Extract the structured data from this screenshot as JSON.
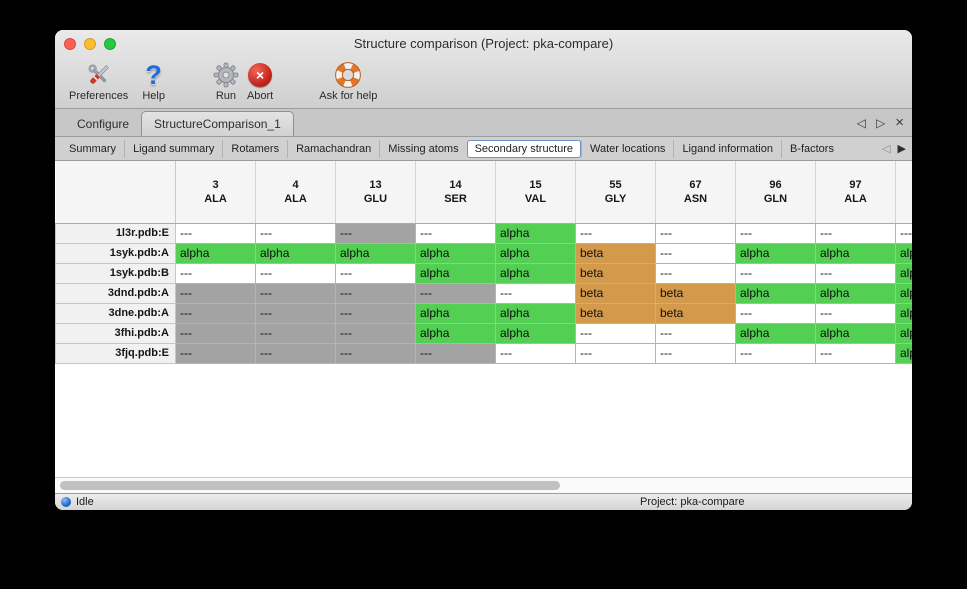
{
  "window": {
    "title": "Structure comparison (Project: pka-compare)"
  },
  "toolbar": {
    "items": [
      {
        "label": "Preferences",
        "icon": "tools-icon"
      },
      {
        "label": "Help",
        "icon": "help-question-icon"
      },
      {
        "label": "Run",
        "icon": "gear-icon"
      },
      {
        "label": "Abort",
        "icon": "abort-icon"
      },
      {
        "label": "Ask for help",
        "icon": "lifebuoy-icon"
      }
    ]
  },
  "main_tabs": {
    "items": [
      {
        "label": "Configure",
        "active": false
      },
      {
        "label": "StructureComparison_1",
        "active": true
      }
    ],
    "controls": {
      "prev": "◁",
      "next": "▷",
      "close": "×"
    }
  },
  "sub_tabs": {
    "items": [
      {
        "label": "Summary",
        "selected": false
      },
      {
        "label": "Ligand summary",
        "selected": false
      },
      {
        "label": "Rotamers",
        "selected": false
      },
      {
        "label": "Ramachandran",
        "selected": false
      },
      {
        "label": "Missing atoms",
        "selected": false
      },
      {
        "label": "Secondary structure",
        "selected": true
      },
      {
        "label": "Water locations",
        "selected": false
      },
      {
        "label": "Ligand information",
        "selected": false
      },
      {
        "label": "B-factors",
        "selected": false
      }
    ],
    "controls": {
      "prev": "◁",
      "next": "▶"
    }
  },
  "table": {
    "columns": [
      {
        "num": "3",
        "res": "ALA"
      },
      {
        "num": "4",
        "res": "ALA"
      },
      {
        "num": "13",
        "res": "GLU"
      },
      {
        "num": "14",
        "res": "SER"
      },
      {
        "num": "15",
        "res": "VAL"
      },
      {
        "num": "55",
        "res": "GLY"
      },
      {
        "num": "67",
        "res": "ASN"
      },
      {
        "num": "96",
        "res": "GLN"
      },
      {
        "num": "97",
        "res": "ALA"
      },
      {
        "num": "",
        "res": ""
      }
    ],
    "rows": [
      {
        "label": "1l3r.pdb:E",
        "cells": [
          [
            "---",
            "none"
          ],
          [
            "---",
            "none"
          ],
          [
            "---",
            "gray"
          ],
          [
            "---",
            "none"
          ],
          [
            "alpha",
            "green"
          ],
          [
            "---",
            "none"
          ],
          [
            "---",
            "none"
          ],
          [
            "---",
            "none"
          ],
          [
            "---",
            "none"
          ],
          [
            "---",
            "none"
          ]
        ]
      },
      {
        "label": "1syk.pdb:A",
        "cells": [
          [
            "alpha",
            "green"
          ],
          [
            "alpha",
            "green"
          ],
          [
            "alpha",
            "green"
          ],
          [
            "alpha",
            "green"
          ],
          [
            "alpha",
            "green"
          ],
          [
            "beta",
            "orange"
          ],
          [
            "---",
            "none"
          ],
          [
            "alpha",
            "green"
          ],
          [
            "alpha",
            "green"
          ],
          [
            "alpha",
            "green"
          ]
        ]
      },
      {
        "label": "1syk.pdb:B",
        "cells": [
          [
            "---",
            "none"
          ],
          [
            "---",
            "none"
          ],
          [
            "---",
            "none"
          ],
          [
            "alpha",
            "green"
          ],
          [
            "alpha",
            "green"
          ],
          [
            "beta",
            "orange"
          ],
          [
            "---",
            "none"
          ],
          [
            "---",
            "none"
          ],
          [
            "---",
            "none"
          ],
          [
            "alpha",
            "green"
          ]
        ]
      },
      {
        "label": "3dnd.pdb:A",
        "cells": [
          [
            "---",
            "gray"
          ],
          [
            "---",
            "gray"
          ],
          [
            "---",
            "gray"
          ],
          [
            "---",
            "gray"
          ],
          [
            "---",
            "none"
          ],
          [
            "beta",
            "orange"
          ],
          [
            "beta",
            "orange"
          ],
          [
            "alpha",
            "green"
          ],
          [
            "alpha",
            "green"
          ],
          [
            "alpha",
            "green"
          ]
        ]
      },
      {
        "label": "3dne.pdb:A",
        "cells": [
          [
            "---",
            "gray"
          ],
          [
            "---",
            "gray"
          ],
          [
            "---",
            "gray"
          ],
          [
            "alpha",
            "green"
          ],
          [
            "alpha",
            "green"
          ],
          [
            "beta",
            "orange"
          ],
          [
            "beta",
            "orange"
          ],
          [
            "---",
            "none"
          ],
          [
            "---",
            "none"
          ],
          [
            "alpha",
            "green"
          ]
        ]
      },
      {
        "label": "3fhi.pdb:A",
        "cells": [
          [
            "---",
            "gray"
          ],
          [
            "---",
            "gray"
          ],
          [
            "---",
            "gray"
          ],
          [
            "alpha",
            "green"
          ],
          [
            "alpha",
            "green"
          ],
          [
            "---",
            "none"
          ],
          [
            "---",
            "none"
          ],
          [
            "alpha",
            "green"
          ],
          [
            "alpha",
            "green"
          ],
          [
            "alpha",
            "green"
          ]
        ]
      },
      {
        "label": "3fjq.pdb:E",
        "cells": [
          [
            "---",
            "gray"
          ],
          [
            "---",
            "gray"
          ],
          [
            "---",
            "gray"
          ],
          [
            "---",
            "gray"
          ],
          [
            "---",
            "none"
          ],
          [
            "---",
            "none"
          ],
          [
            "---",
            "none"
          ],
          [
            "---",
            "none"
          ],
          [
            "---",
            "none"
          ],
          [
            "alpha",
            "green"
          ]
        ]
      }
    ]
  },
  "status_bar": {
    "left": "Idle",
    "right": "Project: pka-compare"
  },
  "colors": {
    "alpha_green": "#53cf53",
    "beta_orange": "#d49a4c",
    "missing_gray": "#a3a3a3",
    "cell_white": "#ffffff"
  }
}
